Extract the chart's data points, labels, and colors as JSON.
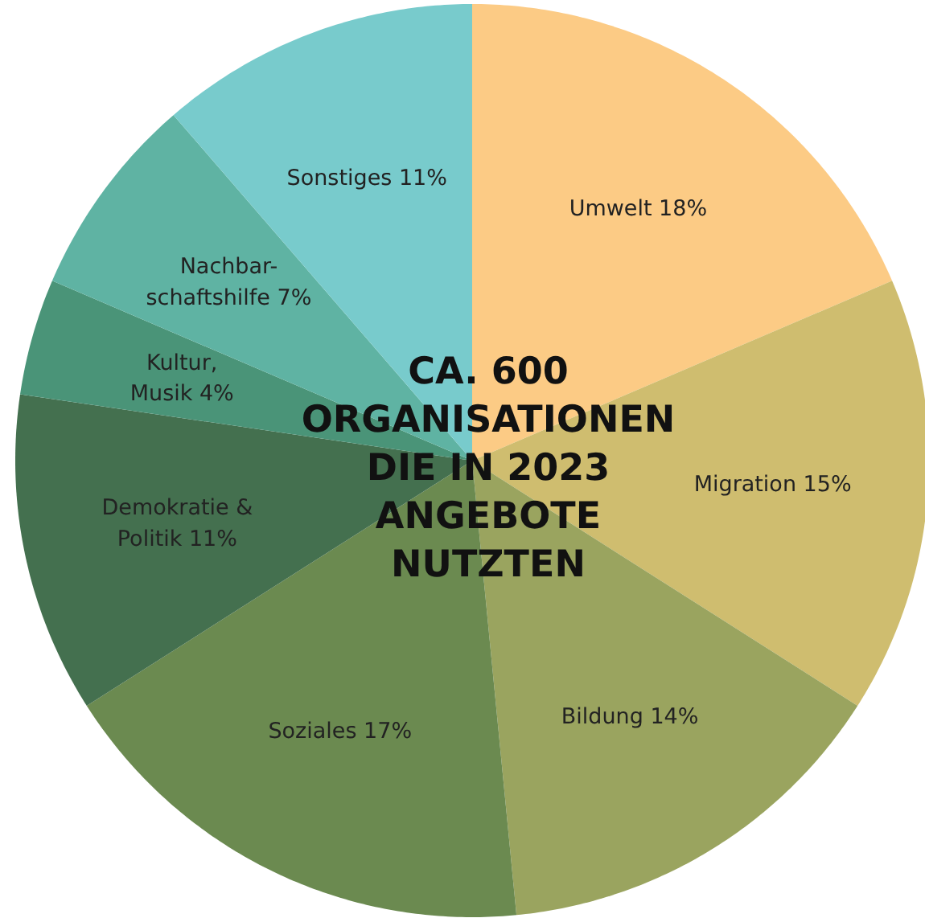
{
  "chart_data": {
    "type": "pie",
    "title": "CA. 600\nORGANISATIONEN\nDIE IN 2023\nANGEBOTE\nNUTZTEN",
    "categories": [
      "Umwelt",
      "Migration",
      "Bildung",
      "Soziales",
      "Demokratie &\nPolitik",
      "Kultur,\nMusik",
      "Nachbar-\nschaftshilfe",
      "Sonstiges"
    ],
    "values": [
      18,
      15,
      14,
      17,
      11,
      4,
      7,
      11
    ],
    "colors": [
      "#fccb85",
      "#cfbd6f",
      "#9aa45f",
      "#6b8a50",
      "#44704f",
      "#4a9478",
      "#5fb3a3",
      "#78cbcc"
    ],
    "value_labels": [
      "18%",
      "15%",
      "14%",
      "17%",
      "11%",
      "4%",
      "7%",
      "11%"
    ]
  }
}
